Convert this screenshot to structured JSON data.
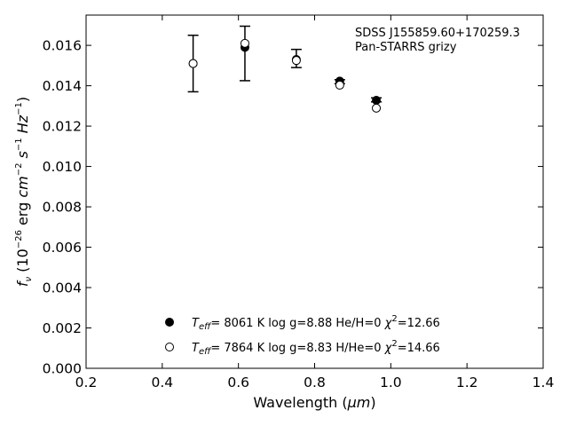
{
  "chart_data": {
    "type": "scatter",
    "annotation": [
      "SDSS J155859.60+170259.3",
      "Pan-STARRS grizy"
    ],
    "xlabel": {
      "text": "Wavelength (",
      "unit": "μm",
      "close": ")"
    },
    "ylabel": {
      "f": "f",
      "nu": "ν",
      "a": " (10",
      "exp26": "−26",
      "b": " erg ",
      "cm": "cm",
      "expm2": "−2",
      "s": "s",
      "expm1": "−1",
      "hz": "Hz",
      "expm1b": "−1",
      "close": ")"
    },
    "xlim": [
      0.2,
      1.4
    ],
    "ylim": [
      0.0,
      0.0175
    ],
    "x_ticks": [
      "0.2",
      "0.4",
      "0.6",
      "0.8",
      "1.0",
      "1.2",
      "1.4"
    ],
    "y_ticks": [
      "0.000",
      "0.002",
      "0.004",
      "0.006",
      "0.008",
      "0.010",
      "0.012",
      "0.014",
      "0.016"
    ],
    "observed": {
      "x": [
        0.481,
        0.617,
        0.752,
        0.866,
        0.962
      ],
      "y": [
        0.0151,
        0.0156,
        0.01535,
        0.0142,
        0.0133
      ],
      "err": [
        0.0014,
        0.00135,
        0.00045,
        0.0001,
        0.0001
      ]
    },
    "series": [
      {
        "marker": "filled",
        "label": {
          "t": "T",
          "eff": "eff",
          "rest": "=  8061 K  log g=8.88  He/H=0  ",
          "chi": "χ",
          "two": "2",
          "val": "=12.66"
        },
        "x": [
          0.481,
          0.617,
          0.752,
          0.866,
          0.962
        ],
        "y": [
          0.0151,
          0.0159,
          0.0153,
          0.01423,
          0.01328
        ]
      },
      {
        "marker": "open",
        "label": {
          "t": "T",
          "eff": "eff",
          "rest": "=  7864 K  log g=8.83  H/He=0  ",
          "chi": "χ",
          "two": "2",
          "val": "=14.66"
        },
        "x": [
          0.481,
          0.617,
          0.752,
          0.866,
          0.962
        ],
        "y": [
          0.0151,
          0.0161,
          0.01525,
          0.01403,
          0.01289
        ]
      }
    ]
  }
}
